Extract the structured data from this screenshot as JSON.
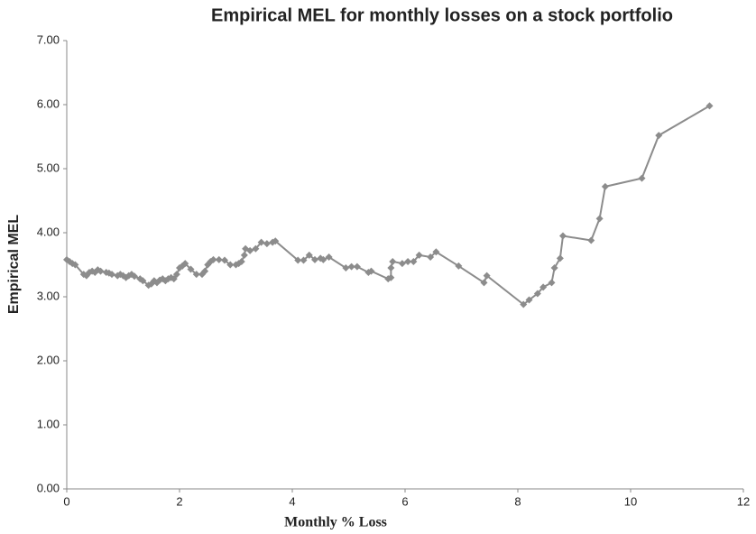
{
  "chart_data": {
    "type": "line",
    "title": "Empirical MEL for monthly losses on a stock portfolio",
    "x_label": "Monthly % Loss",
    "y_label": "Empirical MEL",
    "xlim": [
      0,
      12
    ],
    "xticks": [
      0,
      2,
      4,
      6,
      8,
      10,
      12
    ],
    "ylim": [
      0,
      7
    ],
    "yticks": [
      {
        "value": 0,
        "label": "0.00"
      },
      {
        "value": 1,
        "label": "1.00"
      },
      {
        "value": 2,
        "label": "2.00"
      },
      {
        "value": 3,
        "label": "3.00"
      },
      {
        "value": 4,
        "label": "4.00"
      },
      {
        "value": 5,
        "label": "5.00"
      },
      {
        "value": 6,
        "label": "6.00"
      },
      {
        "value": 7,
        "label": "7.00"
      }
    ],
    "grid": false,
    "series": [
      {
        "name": "Empirical MEL",
        "color": "#8c8c8c",
        "x": [
          0,
          0.05,
          0.1,
          0.15,
          0.3,
          0.35,
          0.4,
          0.45,
          0.5,
          0.55,
          0.6,
          0.7,
          0.75,
          0.8,
          0.9,
          0.95,
          1.0,
          1.05,
          1.1,
          1.15,
          1.2,
          1.3,
          1.35,
          1.45,
          1.5,
          1.55,
          1.6,
          1.65,
          1.7,
          1.75,
          1.8,
          1.85,
          1.9,
          1.95,
          2.0,
          2.05,
          2.1,
          2.2,
          2.3,
          2.4,
          2.45,
          2.5,
          2.55,
          2.6,
          2.7,
          2.8,
          2.9,
          3.0,
          3.05,
          3.1,
          3.15,
          3.17,
          3.25,
          3.35,
          3.45,
          3.55,
          3.65,
          3.7,
          4.1,
          4.2,
          4.3,
          4.4,
          4.5,
          4.55,
          4.65,
          4.95,
          5.05,
          5.15,
          5.35,
          5.4,
          5.7,
          5.75,
          5.75,
          5.78,
          5.95,
          6.05,
          6.15,
          6.25,
          6.45,
          6.55,
          6.95,
          7.4,
          7.45,
          8.1,
          8.2,
          8.35,
          8.45,
          8.6,
          8.65,
          8.75,
          8.8,
          9.3,
          9.45,
          9.55,
          10.2,
          10.5,
          11.4
        ],
        "values": [
          3.58,
          3.55,
          3.52,
          3.5,
          3.35,
          3.33,
          3.38,
          3.4,
          3.38,
          3.42,
          3.4,
          3.38,
          3.37,
          3.35,
          3.33,
          3.35,
          3.33,
          3.3,
          3.33,
          3.35,
          3.32,
          3.28,
          3.25,
          3.18,
          3.2,
          3.25,
          3.22,
          3.26,
          3.28,
          3.25,
          3.28,
          3.3,
          3.28,
          3.35,
          3.45,
          3.48,
          3.52,
          3.43,
          3.35,
          3.35,
          3.4,
          3.5,
          3.55,
          3.58,
          3.58,
          3.57,
          3.5,
          3.5,
          3.52,
          3.55,
          3.65,
          3.75,
          3.72,
          3.75,
          3.85,
          3.83,
          3.85,
          3.87,
          3.57,
          3.57,
          3.65,
          3.58,
          3.6,
          3.58,
          3.62,
          3.45,
          3.47,
          3.47,
          3.38,
          3.4,
          3.28,
          3.3,
          3.45,
          3.55,
          3.52,
          3.55,
          3.55,
          3.65,
          3.62,
          3.7,
          3.48,
          3.22,
          3.33,
          2.88,
          2.95,
          3.05,
          3.15,
          3.22,
          3.45,
          3.6,
          3.95,
          3.88,
          4.22,
          4.72,
          4.85,
          5.52,
          5.98
        ]
      }
    ]
  }
}
